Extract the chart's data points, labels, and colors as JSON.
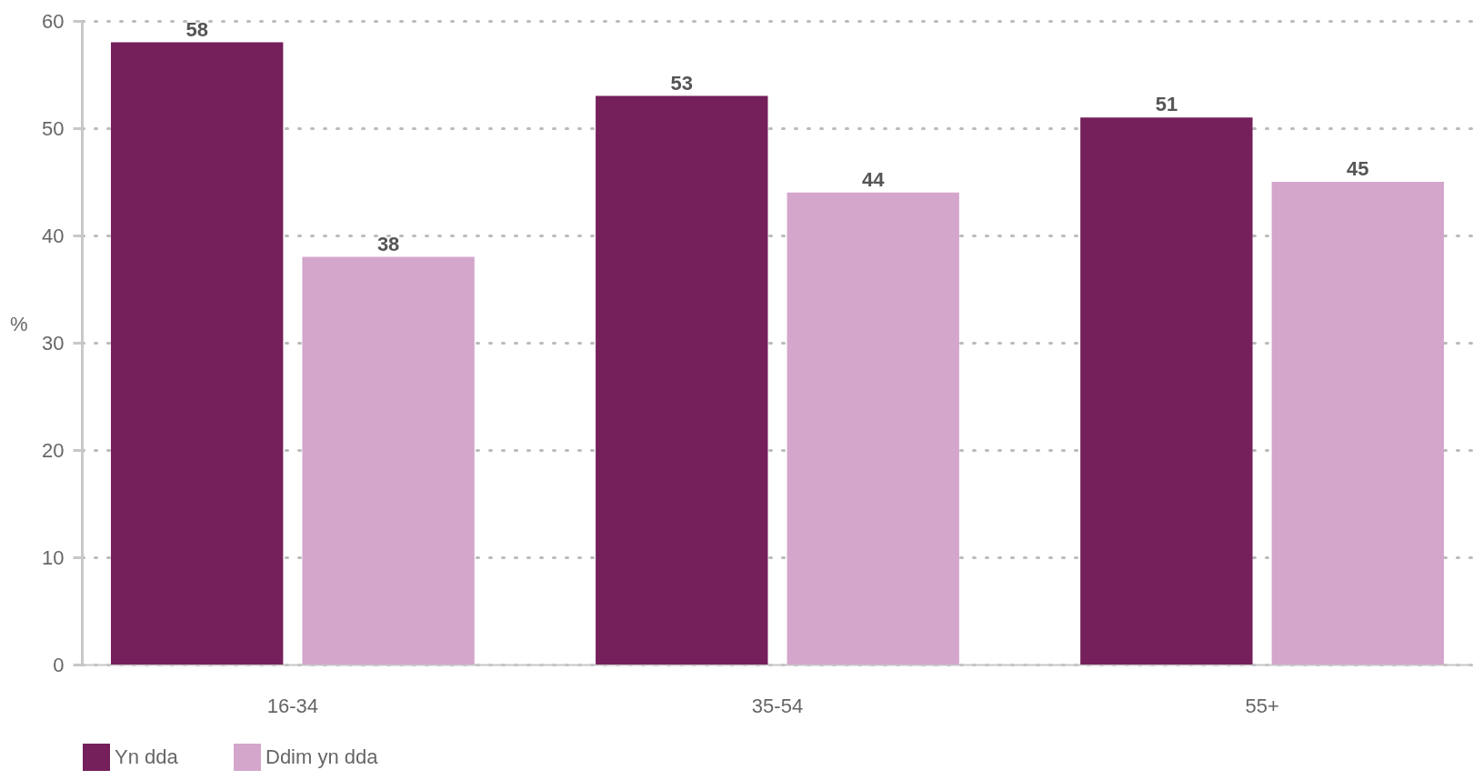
{
  "chart_data": {
    "type": "bar",
    "ylabel": "%",
    "categories": [
      "16-34",
      "35-54",
      "55+"
    ],
    "series": [
      {
        "name": "Yn dda",
        "color": "#751f5b",
        "values": [
          58,
          53,
          51
        ]
      },
      {
        "name": "Ddim yn dda",
        "color": "#d4a6cc",
        "values": [
          38,
          44,
          45
        ]
      }
    ],
    "ylim": [
      0,
      60
    ],
    "yticks": [
      0,
      10,
      20,
      30,
      40,
      50,
      60
    ],
    "grid": "y",
    "legend": "bottom",
    "data_labels": true
  }
}
